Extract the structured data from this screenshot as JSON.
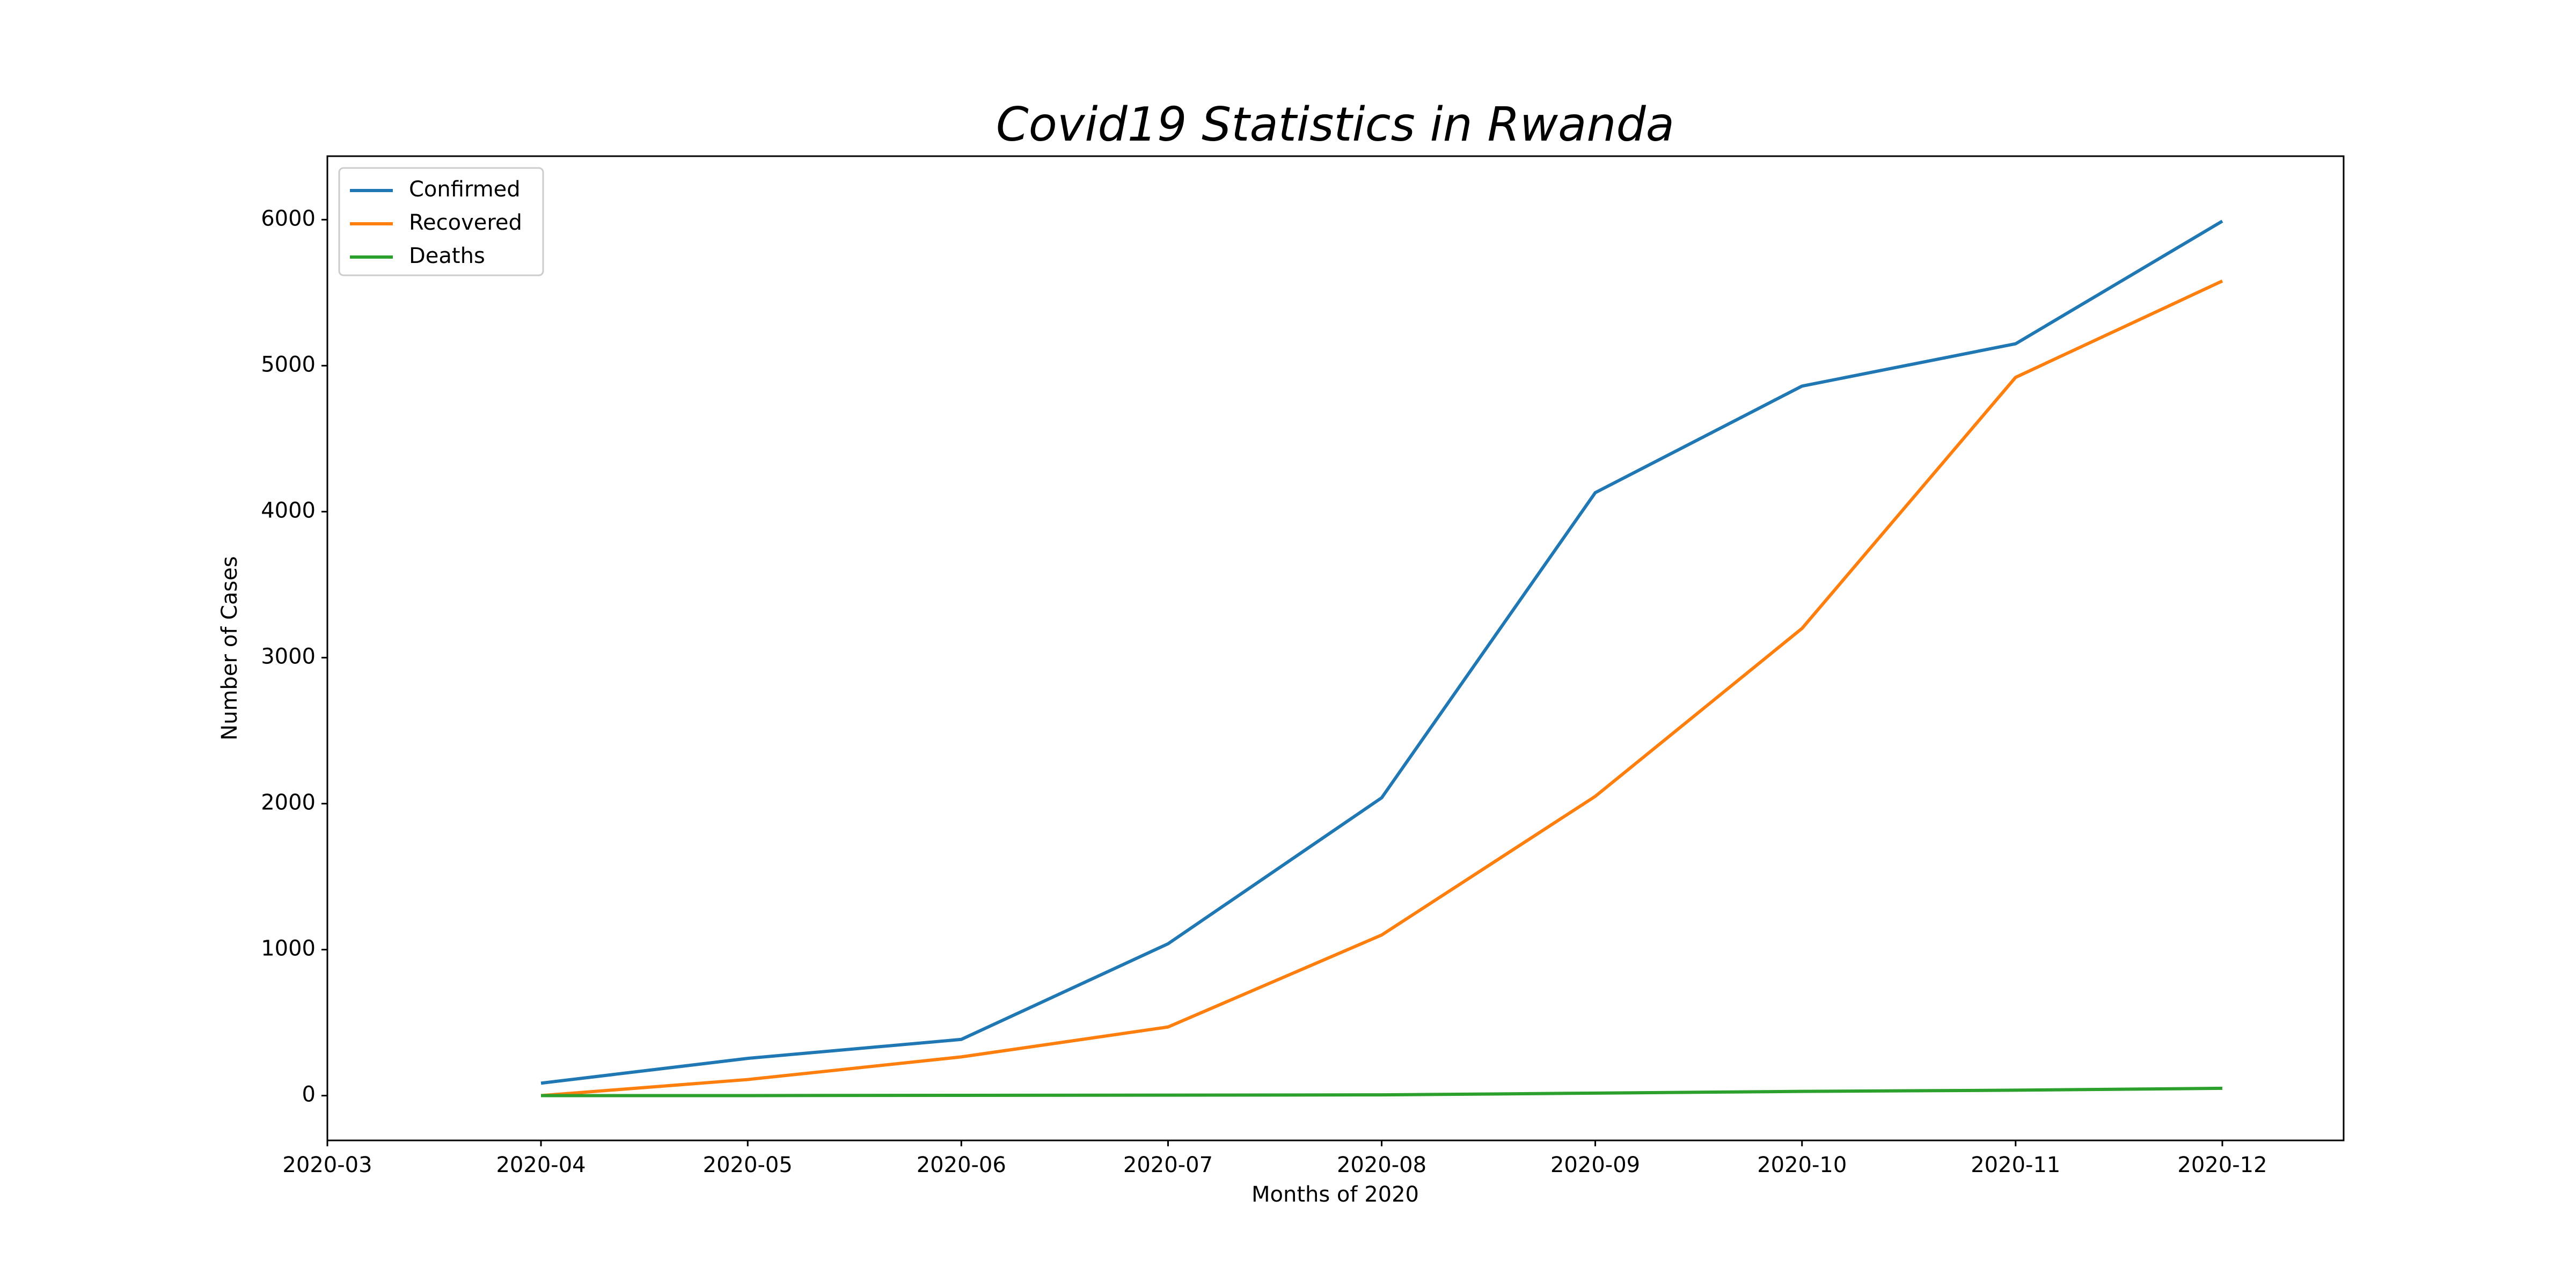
{
  "chart_data": {
    "type": "line",
    "title": "Covid19 Statistics in Rwanda",
    "x_label": "Months of 2020",
    "y_label": "Number of Cases",
    "x": [
      "2020-04",
      "2020-05",
      "2020-06",
      "2020-07",
      "2020-08",
      "2020-09",
      "2020-10",
      "2020-11",
      "2020-12"
    ],
    "series": [
      {
        "name": "Confirmed",
        "color": "#1f77b4",
        "values": [
          85,
          255,
          385,
          1040,
          2040,
          4130,
          4860,
          5150,
          5990
        ]
      },
      {
        "name": "Recovered",
        "color": "#ff7f0e",
        "values": [
          0,
          110,
          265,
          470,
          1100,
          2050,
          3200,
          4920,
          5580
        ]
      },
      {
        "name": "Deaths",
        "color": "#2ca02c",
        "values": [
          0,
          0,
          2,
          3,
          5,
          17,
          29,
          37,
          50
        ]
      }
    ],
    "xlim": [
      "2020-03",
      "2020-12"
    ],
    "xticks": [
      "2020-03",
      "2020-04",
      "2020-05",
      "2020-06",
      "2020-07",
      "2020-08",
      "2020-09",
      "2020-10",
      "2020-11",
      "2020-12"
    ],
    "ylim": [
      -307,
      6435
    ],
    "yticks": [
      0,
      1000,
      2000,
      3000,
      4000,
      5000,
      6000
    ],
    "grid": false,
    "legend": "upper-left"
  }
}
